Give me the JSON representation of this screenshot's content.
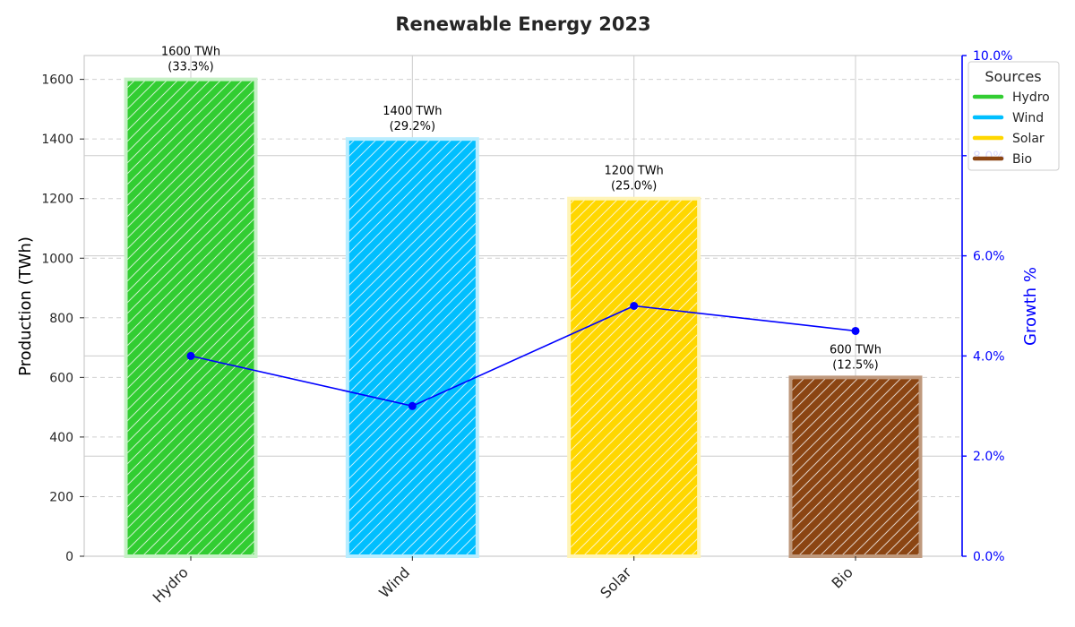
{
  "chart_data": {
    "type": "bar",
    "title": "Renewable Energy 2023",
    "categories": [
      "Hydro",
      "Wind",
      "Solar",
      "Bio"
    ],
    "values": [
      1600,
      1400,
      1200,
      600
    ],
    "value_labels": [
      "1600 TWh",
      "1400 TWh",
      "1200 TWh",
      "600 TWh"
    ],
    "percent_labels": [
      "(33.3%)",
      "(29.2%)",
      "(25.0%)",
      "(12.5%)"
    ],
    "colors": [
      "#32cd32",
      "#00bfff",
      "#ffd700",
      "#8b4513"
    ],
    "ylabel": "Production (TWh)",
    "ylim": [
      0,
      1680
    ],
    "yticks": [
      0,
      200,
      400,
      600,
      800,
      1000,
      1200,
      1400,
      1600
    ],
    "grid": true,
    "secondary_axis": {
      "label": "Growth %",
      "color": "#0000ff",
      "ylim": [
        0,
        10
      ],
      "ticks": [
        0,
        2,
        4,
        6,
        8,
        10
      ],
      "tick_labels": [
        "0.0%",
        "2.0%",
        "4.0%",
        "6.0%",
        "8.0%",
        "10.0%"
      ],
      "series": {
        "name": "Growth %",
        "type": "line",
        "values": [
          4.0,
          3.0,
          5.0,
          4.5
        ]
      }
    },
    "legend": {
      "title": "Sources",
      "placement": "top-right",
      "entries": [
        {
          "label": "Hydro",
          "color": "#32cd32"
        },
        {
          "label": "Wind",
          "color": "#00bfff"
        },
        {
          "label": "Solar",
          "color": "#ffd700"
        },
        {
          "label": "Bio",
          "color": "#8b4513"
        }
      ]
    }
  }
}
